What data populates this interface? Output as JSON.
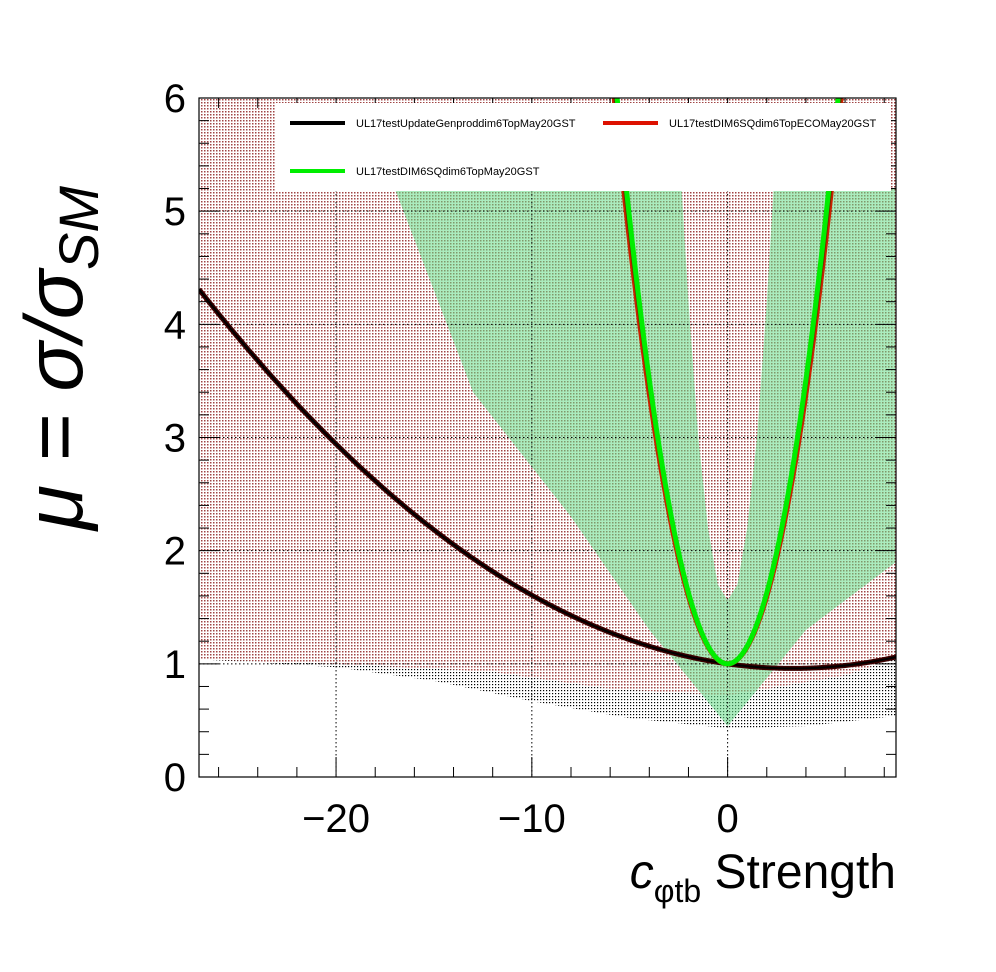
{
  "chart_data": {
    "type": "line",
    "xlabel_main": "c",
    "xlabel_sub": "φtb",
    "xlabel_suffix": " Strength",
    "ylabel": "μ = σ/σ",
    "ylabel_sub": "SM",
    "xlim": [
      -27,
      8.6
    ],
    "ylim": [
      0,
      6
    ],
    "x_ticks": [
      -20,
      -10,
      0
    ],
    "x_tick_labels": [
      "−20",
      "−10",
      "0"
    ],
    "y_ticks": [
      0,
      1,
      2,
      3,
      4,
      5,
      6
    ],
    "y_tick_labels": [
      "0",
      "1",
      "2",
      "3",
      "4",
      "5",
      "6"
    ],
    "grid": true,
    "legend_placement": "top",
    "series": [
      {
        "name": "UL17testUpdateGenproddim6TopMay20GST",
        "color": "#000000",
        "band_color": "#000000",
        "center": {
          "a": 0.00364,
          "b": -0.0243,
          "c": 1.0
        },
        "band_low": [
          [
            -27,
            1.04
          ],
          [
            -25,
            1.02
          ],
          [
            -20,
            0.97
          ],
          [
            -15,
            0.85
          ],
          [
            -10,
            0.67
          ],
          [
            -5,
            0.52
          ],
          [
            0,
            0.43
          ],
          [
            4,
            0.45
          ],
          [
            8.6,
            0.54
          ]
        ],
        "band_high_curve": {
          "a": 0.0026,
          "b": 0.038,
          "c": 1.0
        },
        "band_high_cap": 6
      },
      {
        "name": "UL17testDIM6SQdim6TopECOMay20GST",
        "color": "#cc0000",
        "band_color": "#c06060",
        "center": {
          "a": 0.149,
          "b": 0.0,
          "c": 1.0
        },
        "band_low": [
          [
            -27,
            1.04
          ],
          [
            -20,
            1.0
          ],
          [
            -12,
            0.93
          ],
          [
            -6,
            0.78
          ],
          [
            0,
            0.72
          ],
          [
            6,
            0.9
          ],
          [
            8.6,
            1.05
          ]
        ],
        "band_high_curve": {
          "a": 0.0127,
          "b": 0.0,
          "c": 1.0
        },
        "band_high_cap": 6
      },
      {
        "name": "UL17testDIM6SQdim6TopMay20GST",
        "color": "#00ee00",
        "band_color": "#66dd88",
        "center": {
          "a": 0.157,
          "b": 0.0,
          "c": 1.0
        },
        "band_low_curve": {
          "a": 0.0,
          "b": 0.0,
          "c": 0.45,
          "rise": [
            [
              -17,
              5.2
            ],
            [
              -13,
              3.4
            ],
            [
              -8,
              2.3
            ],
            [
              -4,
              1.3
            ],
            [
              0,
              0.45
            ],
            [
              4,
              1.3
            ],
            [
              8.6,
              1.9
            ]
          ]
        },
        "inner_hole": [
          [
            -2.35,
            5.2
          ],
          [
            -2.0,
            4.2
          ],
          [
            -1.5,
            3.0
          ],
          [
            -1.0,
            2.2
          ],
          [
            -0.5,
            1.7
          ],
          [
            0,
            1.56
          ],
          [
            0.5,
            1.7
          ],
          [
            1.0,
            2.2
          ],
          [
            1.5,
            3.0
          ],
          [
            2.0,
            4.2
          ],
          [
            2.35,
            5.2
          ]
        ],
        "band_top": 5.2
      }
    ]
  },
  "legend": {
    "entries": [
      {
        "label": "UL17testUpdateGenproddim6TopMay20GST",
        "color": "#000000"
      },
      {
        "label": "UL17testDIM6SQdim6TopECOMay20GST",
        "color": "#dd1100"
      },
      {
        "label": "UL17testDIM6SQdim6TopMay20GST",
        "color": "#00ee00"
      }
    ]
  }
}
